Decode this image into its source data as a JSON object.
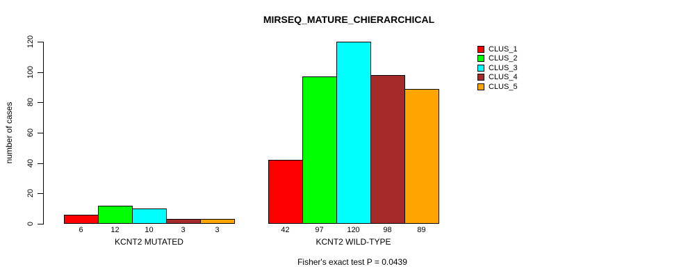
{
  "title": "MIRSEQ_MATURE_CHIERARCHICAL",
  "footer": "Fisher's exact test P = 0.0439",
  "chart_data": {
    "type": "bar",
    "title": "MIRSEQ_MATURE_CHIERARCHICAL",
    "xlabel": "",
    "ylabel": "number of cases",
    "ylim": [
      0,
      120
    ],
    "yticks": [
      0,
      20,
      40,
      60,
      80,
      100,
      120
    ],
    "grid": false,
    "legend_position": "top-right-outside",
    "bar_border_color": "#000000",
    "background_color": "#ffffff",
    "categories": [
      "KCNT2 MUTATED",
      "KCNT2 WILD-TYPE"
    ],
    "series": [
      {
        "name": "CLUS_1",
        "color": "#FF0000",
        "values": [
          6,
          42
        ]
      },
      {
        "name": "CLUS_2",
        "color": "#00FF00",
        "values": [
          12,
          97
        ]
      },
      {
        "name": "CLUS_3",
        "color": "#00FFFF",
        "values": [
          10,
          120
        ]
      },
      {
        "name": "CLUS_4",
        "color": "#A52A2A",
        "values": [
          3,
          98
        ]
      },
      {
        "name": "CLUS_5",
        "color": "#FFA500",
        "values": [
          3,
          89
        ]
      }
    ],
    "value_labels": {
      "KCNT2 MUTATED": [
        6,
        12,
        10,
        3,
        3
      ],
      "KCNT2 WILD-TYPE": [
        42,
        97,
        120,
        98,
        89
      ]
    },
    "annotation": "Fisher's exact test P = 0.0439"
  }
}
